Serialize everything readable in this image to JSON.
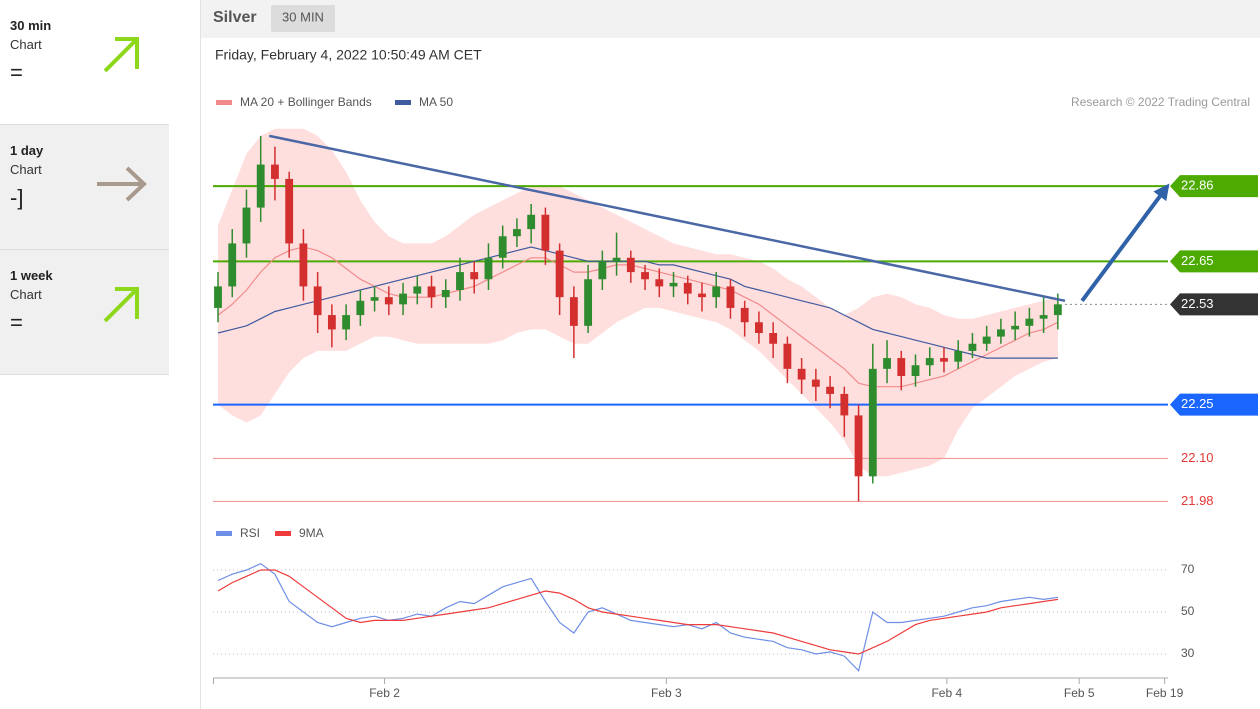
{
  "sidebar": [
    {
      "period": "30 min",
      "label": "Chart",
      "signal": "="
    },
    {
      "period": "1 day",
      "label": "Chart",
      "signal": "-]"
    },
    {
      "period": "1 week",
      "label": "Chart",
      "signal": "="
    }
  ],
  "header": {
    "instrument": "Silver",
    "timeframe": "30 MIN"
  },
  "timestamp": "Friday, February 4, 2022 10:50:49 AM CET",
  "chart_data": [
    {
      "type": "candlestick",
      "credit": "Research © 2022 Trading Central",
      "up_color": "#2e8b2e",
      "down_color": "#d32f2f",
      "xlim": [
        0,
        67.3
      ],
      "ylim": [
        21.97,
        23.05
      ],
      "open": [
        22.52,
        22.58,
        22.7,
        22.8,
        22.92,
        22.88,
        22.7,
        22.58,
        22.5,
        22.46,
        22.5,
        22.54,
        22.55,
        22.53,
        22.56,
        22.58,
        22.55,
        22.57,
        22.62,
        22.6,
        22.66,
        22.72,
        22.74,
        22.78,
        22.68,
        22.55,
        22.47,
        22.6,
        22.65,
        22.66,
        22.62,
        22.6,
        22.58,
        22.59,
        22.56,
        22.55,
        22.58,
        22.52,
        22.48,
        22.45,
        22.42,
        22.35,
        22.32,
        22.3,
        22.28,
        22.22,
        22.05,
        22.35,
        22.38,
        22.33,
        22.36,
        22.38,
        22.37,
        22.4,
        22.42,
        22.44,
        22.46,
        22.47,
        22.49,
        22.5
      ],
      "high": [
        22.62,
        22.74,
        22.85,
        23.0,
        22.97,
        22.9,
        22.74,
        22.62,
        22.53,
        22.53,
        22.57,
        22.58,
        22.58,
        22.59,
        22.61,
        22.61,
        22.6,
        22.66,
        22.65,
        22.7,
        22.75,
        22.77,
        22.81,
        22.8,
        22.7,
        22.58,
        22.64,
        22.68,
        22.73,
        22.68,
        22.64,
        22.63,
        22.62,
        22.61,
        22.59,
        22.62,
        22.6,
        22.54,
        22.51,
        22.48,
        22.44,
        22.38,
        22.35,
        22.33,
        22.3,
        22.25,
        22.42,
        22.43,
        22.4,
        22.39,
        22.41,
        22.41,
        22.43,
        22.45,
        22.47,
        22.49,
        22.51,
        22.52,
        22.55,
        22.56
      ],
      "low": [
        22.48,
        22.55,
        22.66,
        22.76,
        22.82,
        22.66,
        22.54,
        22.45,
        22.41,
        22.43,
        22.47,
        22.51,
        22.5,
        22.5,
        22.53,
        22.52,
        22.52,
        22.54,
        22.56,
        22.57,
        22.63,
        22.69,
        22.7,
        22.64,
        22.5,
        22.38,
        22.45,
        22.57,
        22.61,
        22.59,
        22.57,
        22.55,
        22.55,
        22.53,
        22.51,
        22.52,
        22.49,
        22.44,
        22.42,
        22.38,
        22.31,
        22.28,
        22.26,
        22.24,
        22.16,
        21.98,
        22.03,
        22.31,
        22.29,
        22.3,
        22.33,
        22.34,
        22.35,
        22.38,
        22.4,
        22.42,
        22.43,
        22.44,
        22.45,
        22.46
      ],
      "close": [
        22.58,
        22.7,
        22.8,
        22.92,
        22.88,
        22.7,
        22.58,
        22.5,
        22.46,
        22.5,
        22.54,
        22.55,
        22.53,
        22.56,
        22.58,
        22.55,
        22.57,
        22.62,
        22.6,
        22.66,
        22.72,
        22.74,
        22.78,
        22.68,
        22.55,
        22.47,
        22.6,
        22.65,
        22.66,
        22.62,
        22.6,
        22.58,
        22.59,
        22.56,
        22.55,
        22.58,
        22.52,
        22.48,
        22.45,
        22.42,
        22.35,
        22.32,
        22.3,
        22.28,
        22.22,
        22.05,
        22.35,
        22.38,
        22.33,
        22.36,
        22.38,
        22.37,
        22.4,
        22.42,
        22.44,
        22.46,
        22.47,
        22.49,
        22.5,
        22.53
      ],
      "series": [
        {
          "name": "MA 20 + Bollinger Bands",
          "color": "#f28b8b",
          "band_color": "#ffdede",
          "values": [
            22.5,
            22.53,
            22.57,
            22.62,
            22.66,
            22.68,
            22.69,
            22.68,
            22.66,
            22.63,
            22.6,
            22.58,
            22.56,
            22.55,
            22.55,
            22.55,
            22.56,
            22.57,
            22.58,
            22.6,
            22.62,
            22.64,
            22.66,
            22.66,
            22.64,
            22.62,
            22.62,
            22.63,
            22.64,
            22.64,
            22.63,
            22.62,
            22.61,
            22.6,
            22.59,
            22.58,
            22.57,
            22.55,
            22.53,
            22.5,
            22.47,
            22.44,
            22.41,
            22.38,
            22.35,
            22.31,
            22.3,
            22.3,
            22.3,
            22.31,
            22.32,
            22.33,
            22.35,
            22.37,
            22.39,
            22.41,
            22.43,
            22.45,
            22.46,
            22.48
          ],
          "upper": [
            22.75,
            22.85,
            22.95,
            23.0,
            23.02,
            23.02,
            23.02,
            23.0,
            22.96,
            22.9,
            22.82,
            22.76,
            22.72,
            22.7,
            22.7,
            22.7,
            22.72,
            22.75,
            22.78,
            22.8,
            22.82,
            22.84,
            22.86,
            22.86,
            22.86,
            22.84,
            22.82,
            22.8,
            22.78,
            22.76,
            22.74,
            22.72,
            22.7,
            22.69,
            22.68,
            22.67,
            22.67,
            22.66,
            22.65,
            22.63,
            22.6,
            22.58,
            22.55,
            22.52,
            22.5,
            22.52,
            22.55,
            22.56,
            22.55,
            22.53,
            22.52,
            22.5,
            22.49,
            22.49,
            22.5,
            22.51,
            22.52,
            22.53,
            22.54,
            22.55
          ],
          "lower": [
            22.25,
            22.22,
            22.2,
            22.22,
            22.28,
            22.34,
            22.38,
            22.4,
            22.4,
            22.4,
            22.42,
            22.44,
            22.44,
            22.43,
            22.42,
            22.42,
            22.42,
            22.42,
            22.42,
            22.42,
            22.43,
            22.45,
            22.46,
            22.46,
            22.44,
            22.42,
            22.42,
            22.45,
            22.48,
            22.5,
            22.52,
            22.52,
            22.51,
            22.5,
            22.49,
            22.48,
            22.46,
            22.43,
            22.4,
            22.36,
            22.32,
            22.28,
            22.24,
            22.2,
            22.15,
            22.08,
            22.05,
            22.05,
            22.06,
            22.07,
            22.08,
            22.1,
            22.18,
            22.24,
            22.27,
            22.3,
            22.33,
            22.35,
            22.37,
            22.38
          ]
        },
        {
          "name": "MA 50",
          "color": "#3f5b9e",
          "values": [
            22.45,
            22.46,
            22.47,
            22.49,
            22.51,
            22.52,
            22.53,
            22.54,
            22.55,
            22.56,
            22.57,
            22.58,
            22.59,
            22.6,
            22.61,
            22.62,
            22.63,
            22.64,
            22.65,
            22.66,
            22.67,
            22.68,
            22.69,
            22.68,
            22.67,
            22.66,
            22.65,
            22.65,
            22.65,
            22.65,
            22.65,
            22.64,
            22.64,
            22.63,
            22.62,
            22.61,
            22.6,
            22.58,
            22.57,
            22.56,
            22.55,
            22.54,
            22.53,
            22.52,
            22.5,
            22.48,
            22.46,
            22.45,
            22.44,
            22.43,
            22.42,
            22.41,
            22.4,
            22.39,
            22.38,
            22.38,
            22.38,
            22.38,
            22.38,
            22.38
          ]
        }
      ],
      "trendline": {
        "x": [
          3.6,
          59.5
        ],
        "y": [
          23.0,
          22.54
        ],
        "color": "#4a67a6"
      },
      "forecast_arrow": {
        "x": [
          60.7,
          66.7
        ],
        "y": [
          22.54,
          22.86
        ],
        "color": "#2f62a8"
      },
      "levels": [
        {
          "value": 22.86,
          "color": "#4caa00",
          "tag": true
        },
        {
          "value": 22.65,
          "color": "#4caa00",
          "tag": true
        },
        {
          "value": 22.25,
          "color": "#1a66ff",
          "tag": true
        },
        {
          "value": 22.1,
          "label": "22.10",
          "color": "#f29a9a",
          "text_color": "#e53935",
          "tag": false
        },
        {
          "value": 21.98,
          "color": "#f29a9a",
          "text_color": "#e53935",
          "tag": false
        }
      ],
      "last": {
        "value": 22.53,
        "color": "#333333"
      }
    },
    {
      "type": "line",
      "xlim": [
        0,
        67.3
      ],
      "ylim": [
        20,
        82
      ],
      "yticks": [
        30,
        50,
        70
      ],
      "xticks": [
        {
          "value": 11.7,
          "label": "Feb 2"
        },
        {
          "value": 31.5,
          "label": "Feb 3"
        },
        {
          "value": 51.2,
          "label": "Feb 4"
        },
        {
          "value": 60.5,
          "label": "Feb 5"
        },
        {
          "value": 66.5,
          "label": "Feb 19"
        }
      ],
      "series": [
        {
          "name": "RSI",
          "color": "#6f8fe6",
          "values": [
            65,
            68,
            70,
            73,
            68,
            55,
            50,
            45,
            43,
            45,
            47,
            48,
            46,
            47,
            49,
            48,
            52,
            55,
            54,
            58,
            62,
            64,
            66,
            55,
            45,
            40,
            50,
            52,
            49,
            46,
            45,
            44,
            43,
            44,
            42,
            45,
            40,
            38,
            37,
            36,
            33,
            32,
            30,
            31,
            29,
            22,
            50,
            45,
            45,
            46,
            47,
            48,
            50,
            52,
            53,
            55,
            56,
            57,
            56,
            57
          ]
        },
        {
          "name": "9MA",
          "color": "#ee3b3b",
          "values": [
            60,
            64,
            67,
            70,
            70,
            67,
            62,
            57,
            52,
            47,
            45,
            46,
            46,
            46,
            47,
            48,
            49,
            50,
            51,
            52,
            54,
            56,
            58,
            60,
            59,
            56,
            52,
            50,
            49,
            48,
            47,
            46,
            45,
            44,
            44,
            44,
            43,
            42,
            41,
            40,
            38,
            36,
            34,
            32,
            31,
            30,
            33,
            36,
            40,
            44,
            46,
            47,
            48,
            49,
            50,
            52,
            53,
            54,
            55,
            56
          ]
        }
      ]
    }
  ]
}
